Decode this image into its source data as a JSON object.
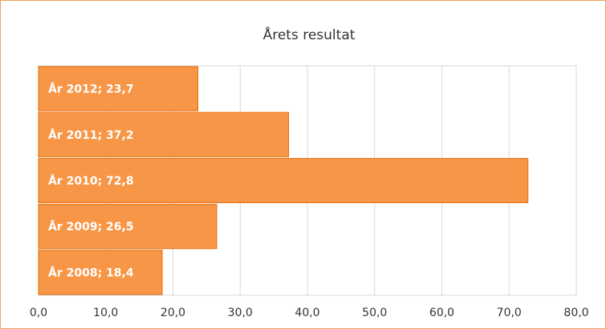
{
  "chart_data": {
    "type": "hbar",
    "title": "Årets resultat",
    "values": [
      23.7,
      37.2,
      72.8,
      26.5,
      18.4
    ],
    "value_labels": [
      "År 2012; 23,7",
      "År 2011; 37,2",
      "År 2010; 72,8",
      "År 2009; 26,5",
      "År 2008; 18,4"
    ],
    "color": "#f79646",
    "xlim": [
      0,
      80
    ],
    "xticks": [
      {
        "value": 0,
        "label": "0,0"
      },
      {
        "value": 10,
        "label": "10,0"
      },
      {
        "value": 20,
        "label": "20,0"
      },
      {
        "value": 30,
        "label": "30,0"
      },
      {
        "value": 40,
        "label": "40,0"
      },
      {
        "value": 50,
        "label": "50,0"
      },
      {
        "value": 60,
        "label": "60,0"
      },
      {
        "value": 70,
        "label": "70,0"
      },
      {
        "value": 80,
        "label": "80,0"
      }
    ],
    "grid": true
  }
}
